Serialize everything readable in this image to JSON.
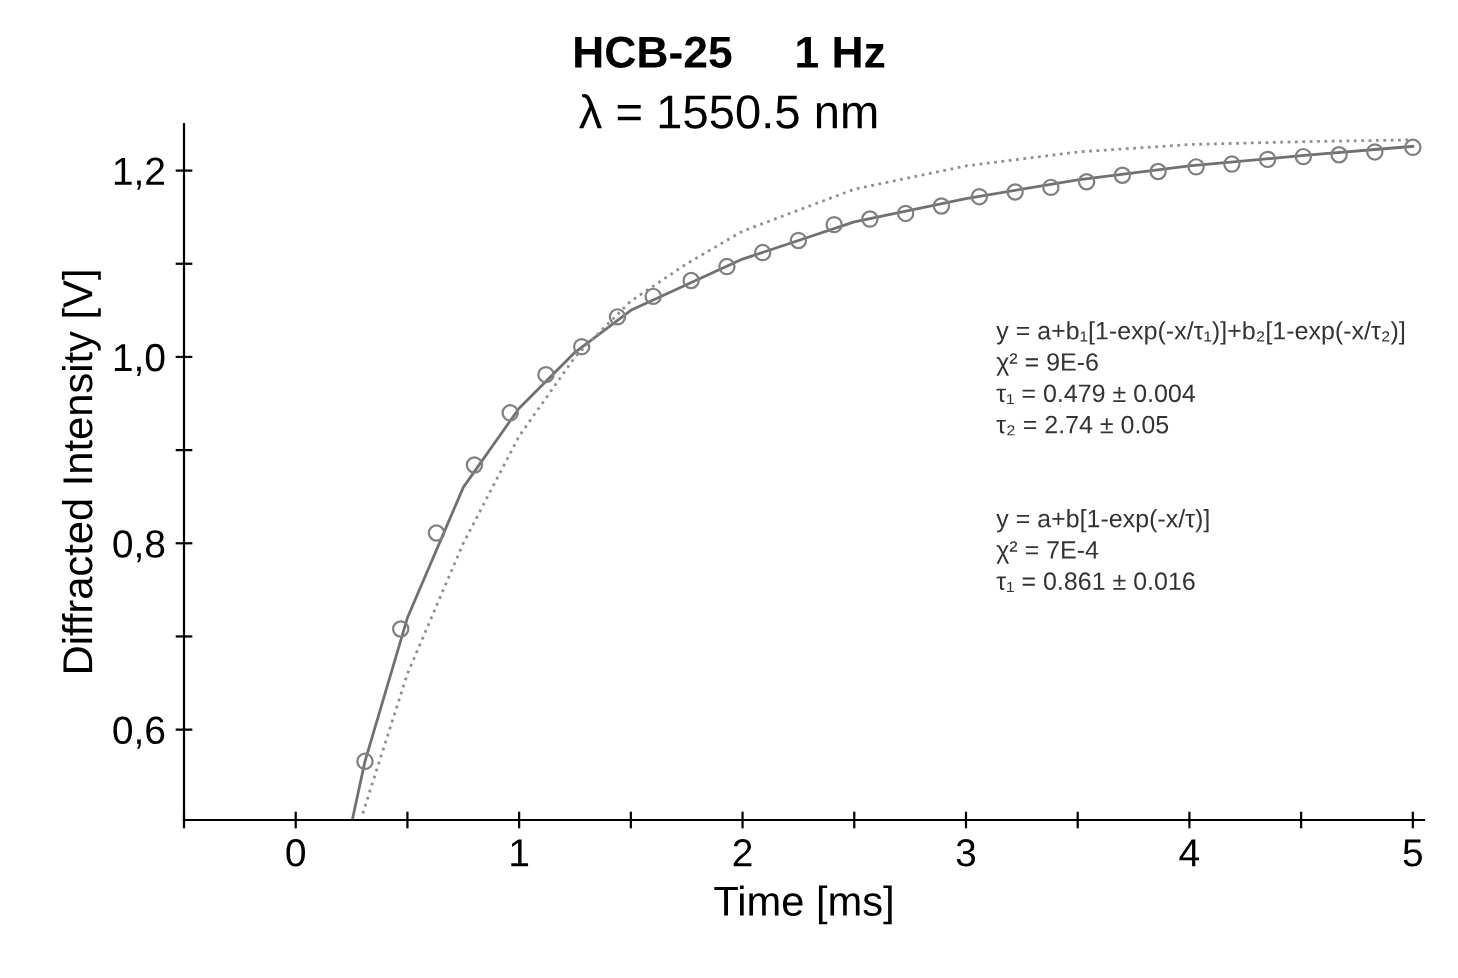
{
  "chart_data": {
    "type": "scatter",
    "title": "HCB-25     1 Hz",
    "subtitle": "λ = 1550.5 nm",
    "xlabel": "Time [ms]",
    "ylabel": "Diffracted Intensity [V]",
    "xlim": [
      -0.5,
      5.05
    ],
    "ylim": [
      0.503,
      1.25
    ],
    "xticks": [
      {
        "value": -0.5,
        "label": null
      },
      0,
      {
        "value": 0.5,
        "label": null
      },
      1,
      {
        "value": 1.5,
        "label": null
      },
      2,
      {
        "value": 2.5,
        "label": null
      },
      3,
      {
        "value": 3.5,
        "label": null
      },
      4,
      {
        "value": 4.5,
        "label": null
      },
      5
    ],
    "yticks": [
      {
        "value": 0.6,
        "label": "0,6"
      },
      {
        "value": 0.7,
        "label": null
      },
      {
        "value": 0.8,
        "label": "0,8"
      },
      {
        "value": 0.9,
        "label": null
      },
      {
        "value": 1.0,
        "label": "1,0"
      },
      {
        "value": 1.1,
        "label": null
      },
      {
        "value": 1.2,
        "label": "1,2"
      }
    ],
    "grid": false,
    "legend": false,
    "series": [
      {
        "marker": "circle",
        "color": "#808080",
        "x": [
          0.31,
          0.47,
          0.63,
          0.8,
          0.96,
          1.12,
          1.28,
          1.44,
          1.6,
          1.77,
          1.93,
          2.09,
          2.25,
          2.41,
          2.57,
          2.73,
          2.89,
          3.06,
          3.22,
          3.38,
          3.54,
          3.7,
          3.86,
          4.03,
          4.19,
          4.35,
          4.51,
          4.67,
          4.83,
          5.0
        ],
        "values": [
          0.566,
          0.708,
          0.811,
          0.884,
          0.94,
          0.981,
          1.011,
          1.043,
          1.065,
          1.082,
          1.097,
          1.112,
          1.125,
          1.142,
          1.148,
          1.154,
          1.162,
          1.172,
          1.177,
          1.182,
          1.188,
          1.195,
          1.199,
          1.204,
          1.207,
          1.212,
          1.215,
          1.217,
          1.22,
          1.225
        ]
      },
      {
        "type": "line",
        "line_style": "solid",
        "color": "#707070",
        "x": [
          0.255,
          0.31,
          0.5,
          0.75,
          1.0,
          1.25,
          1.5,
          2.0,
          2.5,
          3.0,
          3.5,
          4.0,
          4.5,
          5.0
        ],
        "values": [
          0.505,
          0.566,
          0.72,
          0.86,
          0.945,
          1.005,
          1.05,
          1.105,
          1.145,
          1.17,
          1.19,
          1.205,
          1.216,
          1.226
        ]
      },
      {
        "type": "line",
        "line_style": "dotted",
        "color": "#909090",
        "x": [
          0.3,
          0.5,
          0.75,
          1.0,
          1.25,
          1.5,
          1.75,
          2.0,
          2.5,
          3.0,
          3.5,
          4.0,
          4.5,
          5.0
        ],
        "values": [
          0.51,
          0.66,
          0.8,
          0.915,
          1.0,
          1.06,
          1.1,
          1.135,
          1.18,
          1.205,
          1.22,
          1.228,
          1.231,
          1.233
        ]
      }
    ],
    "annotations": [
      "y = a+b₁[1-exp(-x/τ₁)]+b₂[1-exp(-x/τ₂)]",
      "χ² = 9E-6",
      "τ₁ = 0.479 ± 0.004",
      "τ₂ = 2.74 ± 0.05",
      "y = a+b[1-exp(-x/τ)]",
      "χ² = 7E-4",
      "τ₁ = 0.861 ± 0.016"
    ]
  }
}
